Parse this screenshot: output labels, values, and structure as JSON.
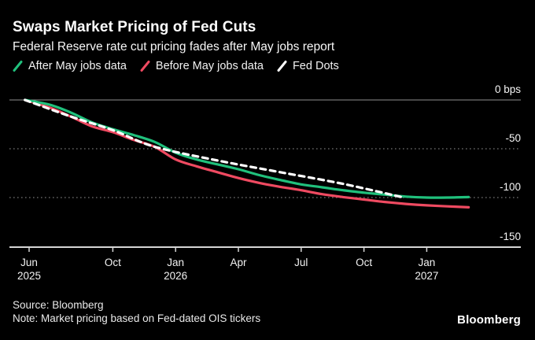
{
  "header": {
    "title": "Swaps Market Pricing of Fed Cuts",
    "subtitle": "Federal Reserve rate cut pricing fades after May jobs report"
  },
  "legend": [
    {
      "label": "After May jobs data",
      "color": "#20c07c"
    },
    {
      "label": "Before May jobs data",
      "color": "#ef4a61"
    },
    {
      "label": "Fed Dots",
      "color": "#ffffff"
    }
  ],
  "footer": {
    "source": "Source: Bloomberg",
    "note": "Note: Market pricing based on Fed-dated OIS tickers",
    "logo": "Bloomberg"
  },
  "chart_data": {
    "type": "line",
    "unit": "bps",
    "title": "Swaps Market Pricing of Fed Cuts",
    "x_axis": {
      "description": "months from Jun 2025 to Mar 2027",
      "ticks": [
        {
          "label": "Jun",
          "year": "2025",
          "month": 0
        },
        {
          "label": "Oct",
          "year": "",
          "month": 4
        },
        {
          "label": "Jan",
          "year": "2026",
          "month": 7
        },
        {
          "label": "Apr",
          "year": "",
          "month": 10
        },
        {
          "label": "Jul",
          "year": "",
          "month": 13
        },
        {
          "label": "Oct",
          "year": "",
          "month": 16
        },
        {
          "label": "Jan",
          "year": "2027",
          "month": 19
        }
      ]
    },
    "y_axis": {
      "range": [
        0,
        -150
      ],
      "grid": "dotted",
      "ticks": [
        {
          "label": "0 bps",
          "value": 0
        },
        {
          "label": "-50",
          "value": -50
        },
        {
          "label": "-100",
          "value": -100
        },
        {
          "label": "-150",
          "value": -150
        }
      ]
    },
    "series": [
      {
        "name": "Before May jobs data",
        "color": "#ef4a61",
        "style": "solid",
        "x": [
          -0.2,
          1,
          2,
          3,
          4,
          5,
          6,
          7,
          8,
          9,
          10,
          11,
          12,
          13,
          14,
          15,
          16,
          17,
          18,
          19,
          20,
          21
        ],
        "values": [
          0,
          -8,
          -17,
          -27,
          -33,
          -41,
          -48,
          -61,
          -68,
          -74,
          -80,
          -85,
          -89,
          -92.5,
          -96.5,
          -99.5,
          -102,
          -104.5,
          -106.5,
          -108,
          -109,
          -110
        ]
      },
      {
        "name": "After May jobs data",
        "color": "#20c07c",
        "style": "solid",
        "x": [
          -0.2,
          1,
          2,
          3,
          4,
          5,
          6,
          7,
          8,
          9,
          10,
          11,
          12,
          13,
          14,
          15,
          16,
          17,
          18,
          19,
          20,
          21
        ],
        "values": [
          0,
          -5,
          -13,
          -23,
          -30,
          -36,
          -43,
          -54,
          -61,
          -66,
          -71,
          -77,
          -82,
          -86.5,
          -89.5,
          -92.5,
          -95,
          -97,
          -99,
          -100,
          -100,
          -99.5
        ]
      },
      {
        "name": "Fed Dots",
        "color": "#ffffff",
        "style": "dashed",
        "x": [
          -0.2,
          2,
          4,
          6,
          9,
          12,
          15,
          17.9
        ],
        "values": [
          0,
          -17,
          -31,
          -48,
          -62,
          -74,
          -86,
          -100
        ]
      }
    ]
  },
  "colors": {
    "background": "#000000",
    "grid_dotted": "#757575",
    "zero_line": "#8f8f8f",
    "axis_line": "#d6d6d6",
    "text": "#f2f2f2"
  }
}
